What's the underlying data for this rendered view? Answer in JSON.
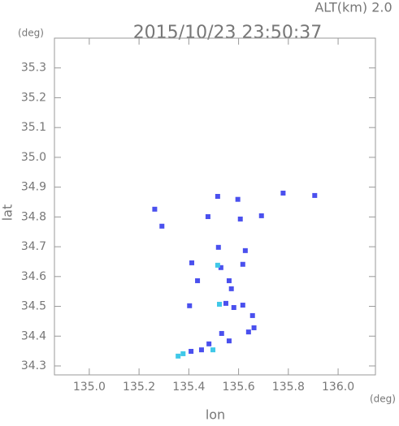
{
  "chart_data": {
    "type": "scatter",
    "header": "ALT(km) 2.0",
    "title": "2015/10/23 23:50:37",
    "y_unit": "(deg)",
    "x_unit": "(deg)",
    "ylabel": "lat",
    "xlabel": "lon",
    "xlim": [
      134.86,
      136.15
    ],
    "ylim": [
      34.27,
      35.4
    ],
    "xticks": [
      {
        "value": 135.0,
        "label": "135.0"
      },
      {
        "value": 135.2,
        "label": "135.2"
      },
      {
        "value": 135.4,
        "label": "135.4"
      },
      {
        "value": 135.6,
        "label": "135.6"
      },
      {
        "value": 135.8,
        "label": "135.8"
      },
      {
        "value": 136.0,
        "label": "136.0"
      }
    ],
    "yticks": [
      34.3,
      34.4,
      34.5,
      34.6,
      34.7,
      34.8,
      34.9,
      {
        "value": 35.0,
        "label": "35.0"
      },
      35.1,
      35.2,
      35.3
    ],
    "series": [
      {
        "color": "#4a50ee",
        "x": [
          135.263,
          135.292,
          135.516,
          135.597,
          135.607,
          135.477,
          135.692,
          135.779,
          135.906,
          135.519,
          135.627,
          135.529,
          135.617,
          135.412,
          135.435,
          135.562,
          135.571,
          135.549,
          135.581,
          135.403,
          135.617,
          135.656,
          135.662,
          135.64,
          135.532,
          135.562,
          135.481,
          135.451,
          135.409
        ],
        "y": [
          34.826,
          34.769,
          34.869,
          34.859,
          34.793,
          34.801,
          34.804,
          34.88,
          34.872,
          34.698,
          34.687,
          34.63,
          34.641,
          34.646,
          34.586,
          34.586,
          34.559,
          34.51,
          34.496,
          34.502,
          34.504,
          34.469,
          34.428,
          34.414,
          34.409,
          34.384,
          34.374,
          34.354,
          34.349
        ]
      },
      {
        "color": "#40c8e8",
        "x": [
          135.377,
          135.357,
          135.497,
          135.523,
          135.516
        ],
        "y": [
          34.341,
          34.333,
          34.354,
          34.507,
          34.638
        ]
      }
    ]
  }
}
